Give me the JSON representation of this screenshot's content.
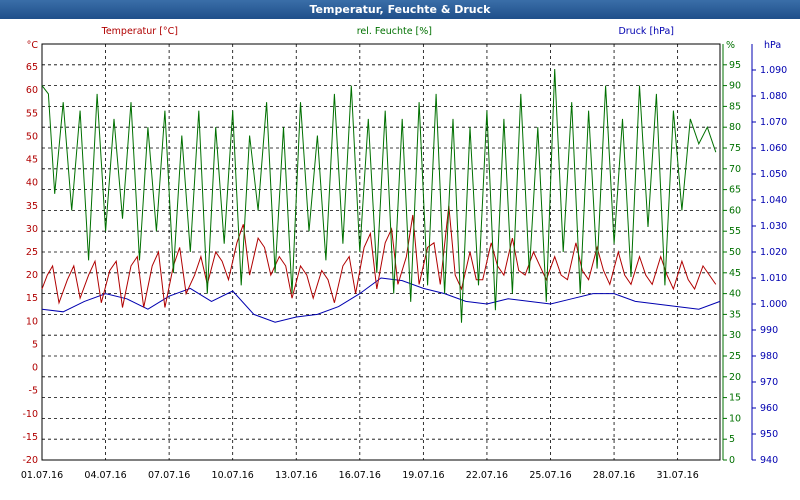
{
  "window": {
    "title": "Temperatur, Feuchte & Druck"
  },
  "colors": {
    "temperature": "#b00000",
    "humidity": "#007000",
    "pressure": "#0000b0",
    "grid": "#000000",
    "bg": "#ffffff",
    "titlebar": "#2a5d9b"
  },
  "chart_data": {
    "type": "line",
    "grid": true,
    "x_axis": {
      "range": [
        "01.07.16",
        "02.08.16"
      ],
      "tick_labels": [
        "01.07.16",
        "04.07.16",
        "07.07.16",
        "10.07.16",
        "13.07.16",
        "16.07.16",
        "19.07.16",
        "22.07.16",
        "25.07.16",
        "28.07.16",
        "31.07.16"
      ],
      "tick_positions_days": [
        0,
        3,
        6,
        9,
        12,
        15,
        18,
        21,
        24,
        27,
        30
      ]
    },
    "axes": {
      "temperature": {
        "label": "Temperatur [°C]",
        "unit": "°C",
        "range": [
          -20,
          70
        ],
        "ticks": [
          -20,
          -15,
          -10,
          -5,
          0,
          5,
          10,
          15,
          20,
          25,
          30,
          35,
          40,
          45,
          50,
          55,
          60,
          65
        ]
      },
      "humidity": {
        "label": "rel. Feuchte [%]",
        "unit": "%",
        "range": [
          0,
          100
        ],
        "ticks": [
          0,
          5,
          10,
          15,
          20,
          25,
          30,
          35,
          40,
          45,
          50,
          55,
          60,
          65,
          70,
          75,
          80,
          85,
          90,
          95
        ]
      },
      "pressure": {
        "label": "Druck [hPa]",
        "unit": "hPa",
        "range": [
          940,
          1100
        ],
        "ticks": [
          "940",
          "950",
          "960",
          "970",
          "980",
          "990",
          "1.000",
          "1.010",
          "1.020",
          "1.030",
          "1.040",
          "1.050",
          "1.060",
          "1.070",
          "1.080",
          "1.090"
        ]
      }
    },
    "series": [
      {
        "name": "Temperatur [°C]",
        "axis": "temperature",
        "x_days": [
          0,
          0.25,
          0.5,
          0.8,
          1.2,
          1.5,
          1.8,
          2.2,
          2.5,
          2.8,
          3.2,
          3.5,
          3.8,
          4.2,
          4.5,
          4.8,
          5.2,
          5.5,
          5.8,
          6.2,
          6.5,
          6.8,
          7.2,
          7.5,
          7.8,
          8.2,
          8.5,
          8.8,
          9.2,
          9.5,
          9.8,
          10.2,
          10.5,
          10.8,
          11.2,
          11.5,
          11.8,
          12.2,
          12.5,
          12.8,
          13.2,
          13.5,
          13.8,
          14.2,
          14.5,
          14.8,
          15.2,
          15.5,
          15.8,
          16.2,
          16.5,
          16.8,
          17.2,
          17.5,
          17.8,
          18.2,
          18.5,
          18.8,
          19.2,
          19.5,
          19.8,
          20.2,
          20.5,
          20.8,
          21.2,
          21.5,
          21.8,
          22.2,
          22.5,
          22.8,
          23.2,
          23.5,
          23.8,
          24.2,
          24.5,
          24.8,
          25.2,
          25.5,
          25.8,
          26.2,
          26.5,
          26.8,
          27.2,
          27.5,
          27.8,
          28.2,
          28.5,
          28.8,
          29.2,
          29.5,
          29.8,
          30.2,
          30.5,
          30.8,
          31.2,
          31.5,
          31.8
        ],
        "values": [
          17,
          20,
          22,
          14,
          19,
          22,
          15,
          20,
          23,
          14,
          21,
          23,
          13,
          22,
          24,
          13,
          22,
          25,
          13,
          22,
          26,
          16,
          20,
          24,
          18,
          25,
          23,
          19,
          27,
          31,
          20,
          28,
          26,
          20,
          24,
          22,
          15,
          22,
          20,
          15,
          21,
          19,
          14,
          22,
          24,
          16,
          26,
          29,
          17,
          27,
          30,
          18,
          24,
          33,
          18,
          26,
          27,
          18,
          35,
          20,
          17,
          25,
          19,
          19,
          27,
          22,
          20,
          28,
          21,
          20,
          25,
          22,
          19,
          24,
          20,
          19,
          27,
          21,
          19,
          26,
          21,
          18,
          25,
          20,
          18,
          24,
          20,
          18,
          24,
          20,
          17,
          23,
          19,
          17,
          22,
          20,
          18
        ]
      },
      {
        "name": "rel. Feuchte [%]",
        "axis": "humidity",
        "x_days": [
          0,
          0.3,
          0.6,
          1.0,
          1.4,
          1.8,
          2.2,
          2.6,
          3.0,
          3.4,
          3.8,
          4.2,
          4.6,
          5.0,
          5.4,
          5.8,
          6.2,
          6.6,
          7.0,
          7.4,
          7.8,
          8.2,
          8.6,
          9.0,
          9.4,
          9.8,
          10.2,
          10.6,
          11.0,
          11.4,
          11.8,
          12.2,
          12.6,
          13.0,
          13.4,
          13.8,
          14.2,
          14.6,
          15.0,
          15.4,
          15.8,
          16.2,
          16.6,
          17.0,
          17.4,
          17.8,
          18.2,
          18.6,
          19.0,
          19.4,
          19.8,
          20.2,
          20.6,
          21.0,
          21.4,
          21.8,
          22.2,
          22.6,
          23.0,
          23.4,
          23.8,
          24.2,
          24.6,
          25.0,
          25.4,
          25.8,
          26.2,
          26.6,
          27.0,
          27.4,
          27.8,
          28.2,
          28.6,
          29.0,
          29.4,
          29.8,
          30.2,
          30.6,
          31.0,
          31.4,
          31.8
        ],
        "values": [
          90,
          88,
          64,
          86,
          60,
          84,
          48,
          88,
          55,
          82,
          58,
          86,
          48,
          80,
          55,
          84,
          45,
          78,
          50,
          84,
          40,
          80,
          52,
          84,
          42,
          78,
          60,
          86,
          45,
          80,
          40,
          86,
          55,
          78,
          48,
          88,
          52,
          90,
          50,
          82,
          45,
          84,
          40,
          82,
          38,
          86,
          42,
          88,
          40,
          82,
          33,
          80,
          42,
          84,
          36,
          82,
          40,
          88,
          45,
          80,
          38,
          94,
          50,
          86,
          40,
          84,
          46,
          90,
          52,
          82,
          44,
          90,
          56,
          88,
          42,
          84,
          60,
          82,
          76,
          80,
          74
        ]
      },
      {
        "name": "Druck [hPa]",
        "axis": "pressure",
        "x_days": [
          0,
          1,
          2,
          3,
          4,
          5,
          6,
          7,
          8,
          9,
          10,
          11,
          12,
          13,
          14,
          15,
          16,
          17,
          18,
          19,
          20,
          21,
          22,
          23,
          24,
          25,
          26,
          27,
          28,
          29,
          30,
          31,
          32
        ],
        "values": [
          998,
          997,
          1001,
          1004,
          1002,
          998,
          1003,
          1006,
          1001,
          1005,
          996,
          993,
          995,
          996,
          999,
          1004,
          1010,
          1009,
          1006,
          1004,
          1001,
          1000,
          1002,
          1001,
          1000,
          1002,
          1004,
          1004,
          1001,
          1000,
          999,
          998,
          1001
        ]
      }
    ]
  }
}
